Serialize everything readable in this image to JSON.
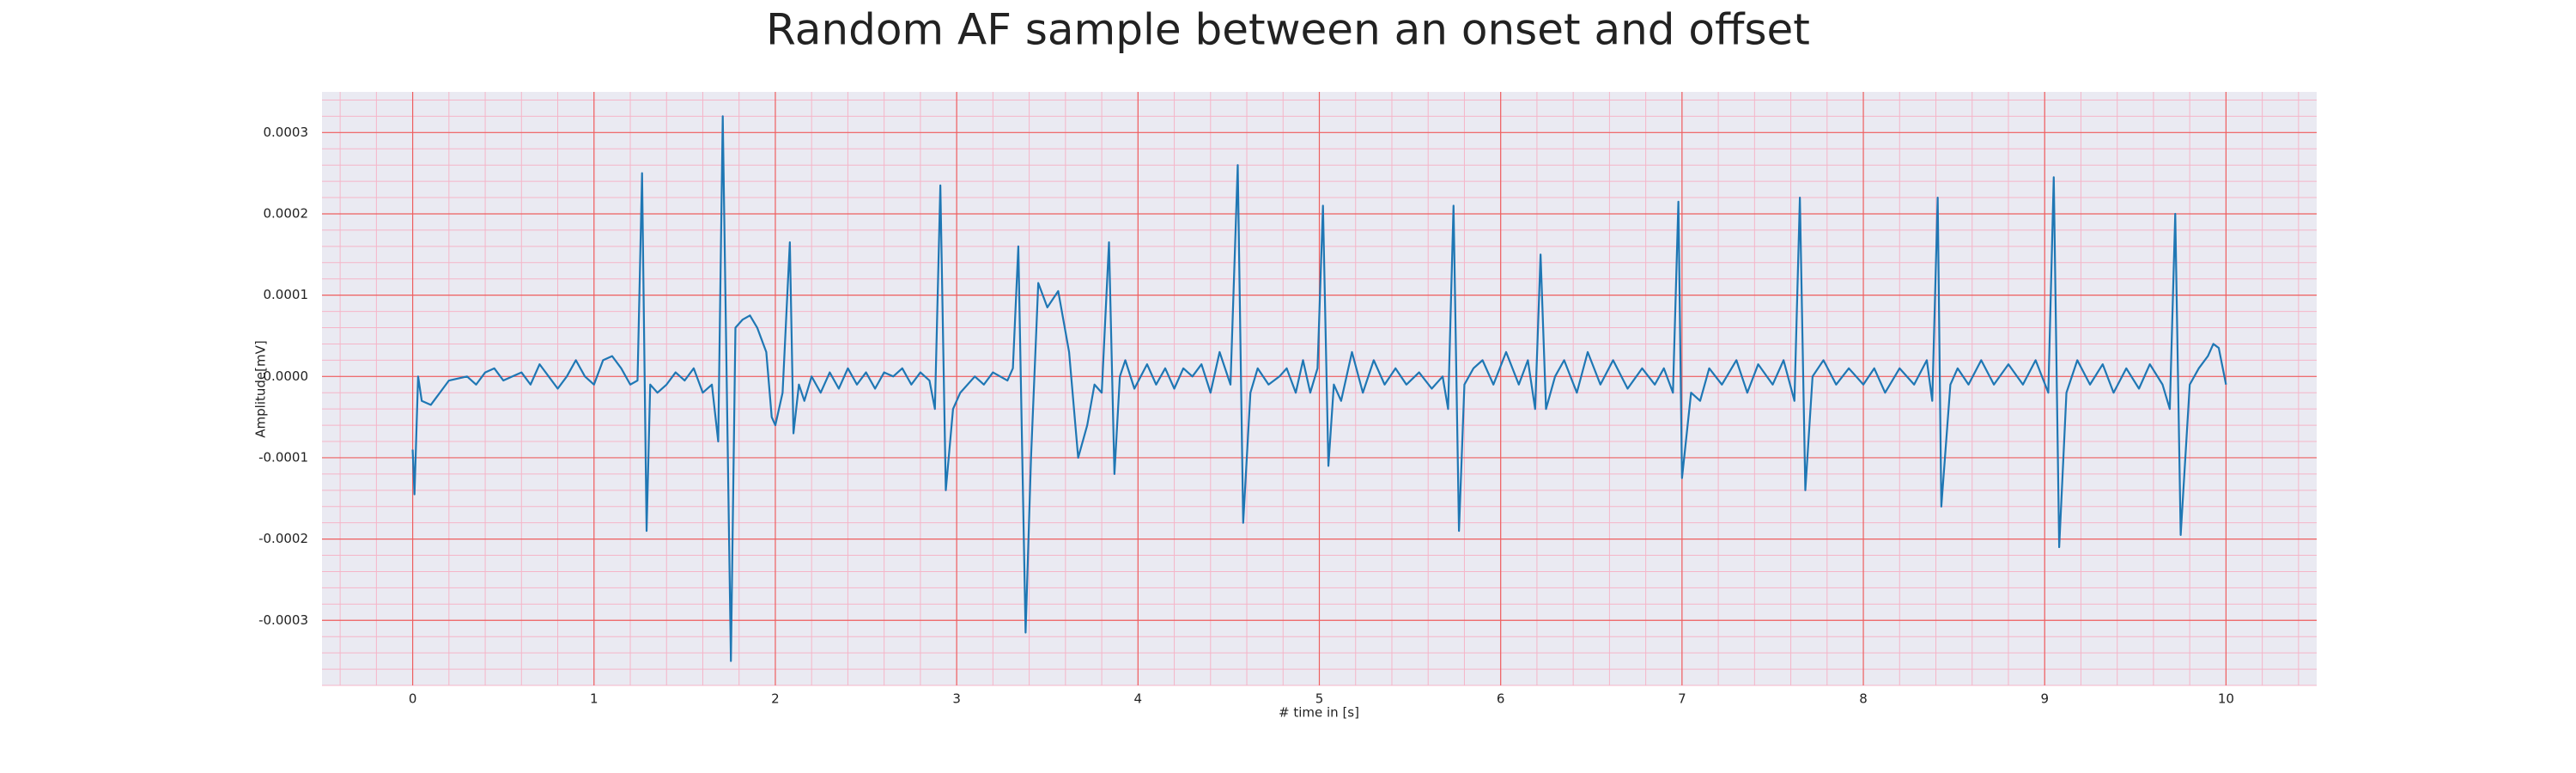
{
  "chart_data": {
    "type": "line",
    "title": "Random AF sample between an onset and offset",
    "xlabel": "# time in [s]",
    "ylabel": "Amplitude[mV]",
    "color": "#1f77b4",
    "background": "#eaeaf2",
    "grid": true,
    "minor_grid": true,
    "xlim": [
      -0.5,
      10.5
    ],
    "ylim": [
      -0.00038,
      0.00035
    ],
    "xticks": [
      0,
      1,
      2,
      3,
      4,
      5,
      6,
      7,
      8,
      9,
      10
    ],
    "yticks": [
      -0.0003,
      -0.0002,
      -0.0001,
      {
        "value": 0,
        "label": "0.0000"
      },
      0.0001,
      0.0002,
      0.0003
    ],
    "x": [
      0,
      0.01,
      0.03,
      0.05,
      0.1,
      0.15,
      0.2,
      0.3,
      0.35,
      0.4,
      0.45,
      0.5,
      0.55,
      0.6,
      0.65,
      0.7,
      0.75,
      0.8,
      0.85,
      0.9,
      0.95,
      1.0,
      1.05,
      1.1,
      1.15,
      1.2,
      1.24,
      1.265,
      1.29,
      1.31,
      1.35,
      1.4,
      1.45,
      1.5,
      1.55,
      1.6,
      1.65,
      1.685,
      1.71,
      1.755,
      1.78,
      1.82,
      1.86,
      1.9,
      1.95,
      1.98,
      2.0,
      2.04,
      2.08,
      2.1,
      2.13,
      2.16,
      2.2,
      2.25,
      2.3,
      2.35,
      2.4,
      2.45,
      2.5,
      2.55,
      2.6,
      2.65,
      2.7,
      2.75,
      2.8,
      2.85,
      2.88,
      2.91,
      2.94,
      2.98,
      3.02,
      3.1,
      3.15,
      3.2,
      3.28,
      3.31,
      3.34,
      3.38,
      3.41,
      3.45,
      3.5,
      3.56,
      3.62,
      3.67,
      3.72,
      3.76,
      3.8,
      3.84,
      3.87,
      3.9,
      3.93,
      3.98,
      4.05,
      4.1,
      4.15,
      4.2,
      4.25,
      4.3,
      4.35,
      4.4,
      4.45,
      4.51,
      4.55,
      4.58,
      4.62,
      4.66,
      4.72,
      4.78,
      4.82,
      4.87,
      4.91,
      4.95,
      4.99,
      5.02,
      5.05,
      5.08,
      5.12,
      5.18,
      5.24,
      5.3,
      5.36,
      5.42,
      5.48,
      5.55,
      5.62,
      5.68,
      5.71,
      5.74,
      5.77,
      5.8,
      5.85,
      5.9,
      5.96,
      6.03,
      6.1,
      6.15,
      6.19,
      6.22,
      6.25,
      6.3,
      6.35,
      6.42,
      6.48,
      6.55,
      6.62,
      6.7,
      6.78,
      6.85,
      6.9,
      6.95,
      6.98,
      7.0,
      7.05,
      7.1,
      7.15,
      7.22,
      7.3,
      7.36,
      7.42,
      7.5,
      7.56,
      7.62,
      7.65,
      7.68,
      7.72,
      7.78,
      7.85,
      7.92,
      8.0,
      8.06,
      8.12,
      8.2,
      8.28,
      8.35,
      8.38,
      8.41,
      8.43,
      8.48,
      8.52,
      8.58,
      8.65,
      8.72,
      8.8,
      8.88,
      8.95,
      9.02,
      9.05,
      9.08,
      9.12,
      9.18,
      9.25,
      9.32,
      9.38,
      9.45,
      9.52,
      9.58,
      9.65,
      9.69,
      9.72,
      9.75,
      9.8,
      9.85,
      9.9,
      9.93,
      9.96,
      10.0
    ],
    "values": [
      -9e-05,
      -0.000145,
      0,
      -3e-05,
      -3.5e-05,
      -2e-05,
      -5e-06,
      0,
      -1e-05,
      5e-06,
      1e-05,
      -5e-06,
      0,
      5e-06,
      -1e-05,
      1.5e-05,
      0,
      -1.5e-05,
      0,
      2e-05,
      0,
      -1e-05,
      2e-05,
      2.5e-05,
      1e-05,
      -1e-05,
      -5e-06,
      0.00025,
      -0.00019,
      -1e-05,
      -2e-05,
      -1e-05,
      5e-06,
      -5e-06,
      1e-05,
      -2e-05,
      -1e-05,
      -8e-05,
      0.00032,
      -0.00035,
      6e-05,
      7e-05,
      7.5e-05,
      6e-05,
      3e-05,
      -5e-05,
      -6e-05,
      -2e-05,
      0.000165,
      -7e-05,
      -1e-05,
      -3e-05,
      0,
      -2e-05,
      5e-06,
      -1.5e-05,
      1e-05,
      -1e-05,
      5e-06,
      -1.5e-05,
      5e-06,
      0,
      1e-05,
      -1e-05,
      5e-06,
      -5e-06,
      -4e-05,
      0.000235,
      -0.00014,
      -4e-05,
      -2e-05,
      0,
      -1e-05,
      5e-06,
      -5e-06,
      1e-05,
      0.00016,
      -0.000315,
      -0.0001,
      0.000115,
      8.5e-05,
      0.000105,
      3e-05,
      -0.0001,
      -6e-05,
      -1e-05,
      -2e-05,
      0.000165,
      -0.00012,
      0,
      2e-05,
      -1.5e-05,
      1.5e-05,
      -1e-05,
      1e-05,
      -1.5e-05,
      1e-05,
      0,
      1.5e-05,
      -2e-05,
      3e-05,
      -1e-05,
      0.00026,
      -0.00018,
      -2e-05,
      1e-05,
      -1e-05,
      0,
      1e-05,
      -2e-05,
      2e-05,
      -2e-05,
      1e-05,
      0.00021,
      -0.00011,
      -1e-05,
      -3e-05,
      3e-05,
      -2e-05,
      2e-05,
      -1e-05,
      1e-05,
      -1e-05,
      5e-06,
      -1.5e-05,
      0,
      -4e-05,
      0.00021,
      -0.00019,
      -1e-05,
      1e-05,
      2e-05,
      -1e-05,
      3e-05,
      -1e-05,
      2e-05,
      -4e-05,
      0.00015,
      -4e-05,
      0,
      2e-05,
      -2e-05,
      3e-05,
      -1e-05,
      2e-05,
      -1.5e-05,
      1e-05,
      -1e-05,
      1e-05,
      -2e-05,
      0.000215,
      -0.000125,
      -2e-05,
      -3e-05,
      1e-05,
      -1e-05,
      2e-05,
      -2e-05,
      1.5e-05,
      -1e-05,
      2e-05,
      -3e-05,
      0.00022,
      -0.00014,
      0,
      2e-05,
      -1e-05,
      1e-05,
      -1e-05,
      1e-05,
      -2e-05,
      1e-05,
      -1e-05,
      2e-05,
      -3e-05,
      0.00022,
      -0.00016,
      -1e-05,
      1e-05,
      -1e-05,
      2e-05,
      -1e-05,
      1.5e-05,
      -1e-05,
      2e-05,
      -2e-05,
      0.000245,
      -0.00021,
      -2e-05,
      2e-05,
      -1e-05,
      1.5e-05,
      -2e-05,
      1e-05,
      -1.5e-05,
      1.5e-05,
      -1e-05,
      -4e-05,
      0.0002,
      -0.000195,
      -1e-05,
      1e-05,
      2.5e-05,
      4e-05,
      3.5e-05,
      -1e-05
    ]
  }
}
